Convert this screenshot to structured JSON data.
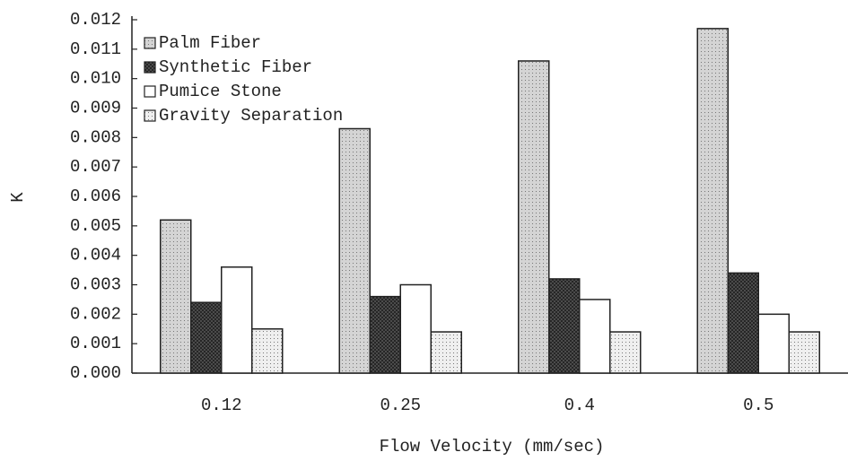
{
  "chart_data": {
    "type": "bar",
    "x_label": "Flow Velocity (mm/sec)",
    "y_label": "K",
    "categories": [
      "0.12",
      "0.25",
      "0.4",
      "0.5"
    ],
    "series": [
      {
        "name": "Palm Fiber",
        "color": "#d4d4d4",
        "values": [
          0.0052,
          0.0083,
          0.0106,
          0.0117
        ]
      },
      {
        "name": "Synthetic Fiber",
        "color": "#5a5a5a",
        "values": [
          0.0024,
          0.0026,
          0.0032,
          0.0034
        ]
      },
      {
        "name": "Pumice Stone",
        "color": "#ffffff",
        "values": [
          0.0036,
          0.003,
          0.0025,
          0.002
        ]
      },
      {
        "name": "Gravity Separation",
        "color": "#efefef",
        "values": [
          0.0015,
          0.0014,
          0.0014,
          0.0014
        ]
      }
    ],
    "ylim": [
      0,
      0.012
    ],
    "yticks": [
      {
        "value": 0,
        "label": "0.000"
      },
      {
        "value": 0.001,
        "label": "0.001"
      },
      {
        "value": 0.002,
        "label": "0.002"
      },
      {
        "value": 0.003,
        "label": "0.003"
      },
      {
        "value": 0.004,
        "label": "0.004"
      },
      {
        "value": 0.005,
        "label": "0.005"
      },
      {
        "value": 0.006,
        "label": "0.006"
      },
      {
        "value": 0.007,
        "label": "0.007"
      },
      {
        "value": 0.008,
        "label": "0.008"
      },
      {
        "value": 0.009,
        "label": "0.009"
      },
      {
        "value": 0.01,
        "label": "0.010"
      },
      {
        "value": 0.011,
        "label": "0.011"
      },
      {
        "value": 0.012,
        "label": "0.012"
      }
    ],
    "legend": "upper-left"
  }
}
